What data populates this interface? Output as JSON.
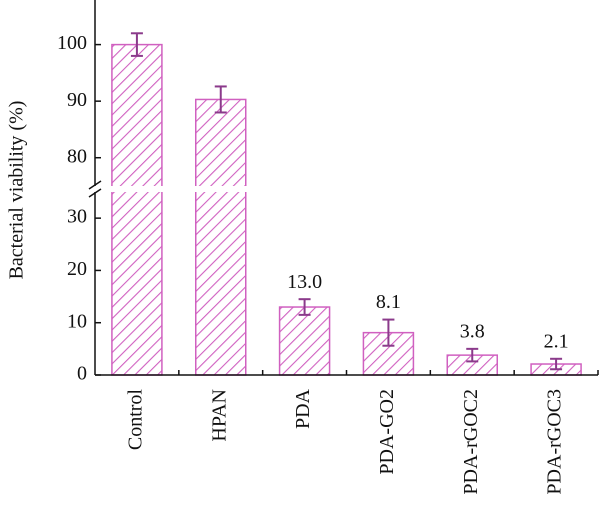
{
  "chart_data": {
    "type": "bar",
    "ylabel": "Bacterial viability (%)",
    "categories": [
      "Control",
      "HPAN",
      "PDA",
      "PDA-GO2",
      "PDA-rGOC2",
      "PDA-rGOC3"
    ],
    "values": [
      100,
      90.3,
      13.0,
      8.1,
      3.8,
      2.1
    ],
    "errors": [
      2.0,
      2.3,
      1.5,
      2.5,
      1.2,
      1.0
    ],
    "value_labels": [
      null,
      null,
      "13.0",
      "8.1",
      "3.8",
      "2.1"
    ],
    "color": "#d060c0",
    "error_color": "#8b3a8b",
    "ylim": [
      0,
      107
    ],
    "axis_break": [
      35,
      75
    ],
    "yticks": [
      0,
      10,
      20,
      30,
      80,
      90,
      100
    ]
  }
}
